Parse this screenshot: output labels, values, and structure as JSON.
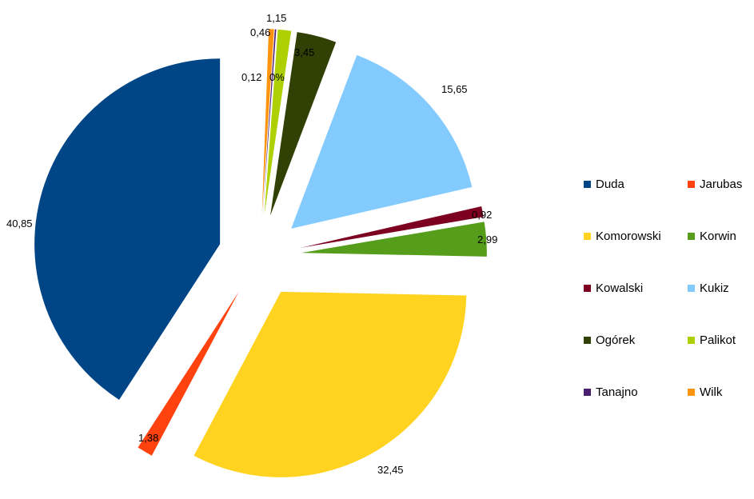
{
  "chart_data": {
    "type": "pie",
    "title": "",
    "categories": [
      "Duda",
      "Jarubas",
      "Komorowski",
      "Korwin",
      "Kowalski",
      "Kukiz",
      "Ogórek",
      "Palikot",
      "Tanajno",
      "Wilk"
    ],
    "values": [
      40.85,
      1.38,
      32.45,
      2.99,
      0.92,
      15.65,
      3.45,
      1.15,
      0.12,
      0.46
    ],
    "value_labels": [
      "40,85",
      "1,38",
      "32,45",
      "2,99",
      "0,92",
      "15,65",
      "3,45",
      "1,15",
      "0,12",
      "0,46"
    ],
    "extra_label": "0%",
    "colors": [
      "#004586",
      "#ff420e",
      "#ffd320",
      "#579d1c",
      "#7e0021",
      "#83caff",
      "#314004",
      "#aecf00",
      "#4b1f6f",
      "#ff950e"
    ],
    "exploded": true,
    "legend_placement": "right"
  }
}
